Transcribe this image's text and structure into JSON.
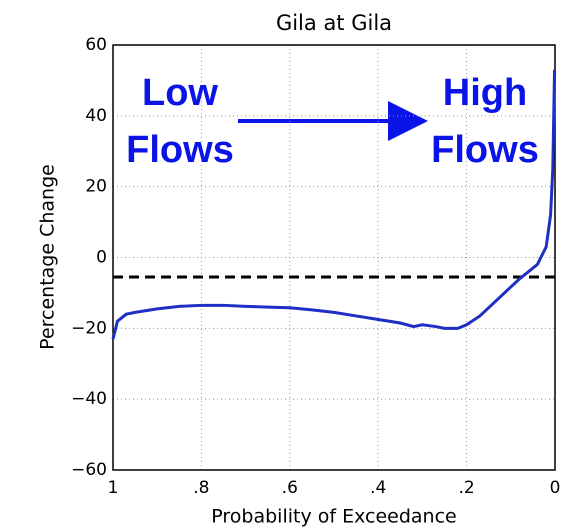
{
  "chart_data": {
    "type": "line",
    "title": "Gila at Gila",
    "x_label": "Probability of Exceedance",
    "y_label": "Percentage Change",
    "xlim": [
      1,
      0
    ],
    "ylim": [
      -60,
      60
    ],
    "xticks": [
      1,
      {
        "value": 0.8,
        "label": ".8"
      },
      {
        "value": 0.6,
        "label": ".6"
      },
      {
        "value": 0.4,
        "label": ".4"
      },
      {
        "value": 0.2,
        "label": ".2"
      },
      0
    ],
    "yticks": [
      {
        "value": -60,
        "label": "−60"
      },
      {
        "value": -40,
        "label": "−40"
      },
      {
        "value": -20,
        "label": "−20"
      },
      0,
      20,
      40,
      60
    ],
    "grid": true,
    "hline": -5.5,
    "annotations": [
      "Low",
      "Flows",
      "High",
      "Flows"
    ],
    "series": [
      {
        "color": "#1f2fc4",
        "x": [
          1.0,
          0.99,
          0.97,
          0.95,
          0.9,
          0.85,
          0.8,
          0.75,
          0.7,
          0.65,
          0.6,
          0.55,
          0.5,
          0.45,
          0.4,
          0.35,
          0.32,
          0.3,
          0.27,
          0.25,
          0.22,
          0.2,
          0.17,
          0.14,
          0.11,
          0.08,
          0.06,
          0.04,
          0.02,
          0.01,
          0.005,
          0.001
        ],
        "values": [
          -23,
          -18,
          -16,
          -15.5,
          -14.5,
          -13.8,
          -13.5,
          -13.5,
          -13.8,
          -14,
          -14.2,
          -14.8,
          -15.5,
          -16.5,
          -17.5,
          -18.5,
          -19.5,
          -19,
          -19.5,
          -20,
          -20,
          -19,
          -16.5,
          -13,
          -9.5,
          -6,
          -4,
          -2,
          3,
          12,
          25,
          53
        ]
      }
    ]
  }
}
